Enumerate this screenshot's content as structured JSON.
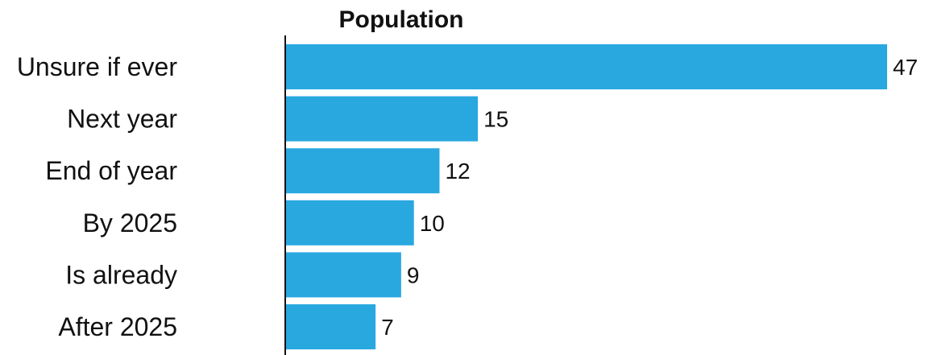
{
  "chart_data": {
    "type": "bar",
    "orientation": "horizontal",
    "title": "Population",
    "xlabel": "",
    "ylabel": "",
    "categories": [
      "Unsure if ever",
      "Next year",
      "End of year",
      "By 2025",
      "Is already",
      "After 2025"
    ],
    "values": [
      47,
      15,
      12,
      10,
      9,
      7
    ],
    "xlim": [
      0,
      47
    ],
    "grid": false,
    "legend": "none",
    "colors": {
      "bar": "#29a8e0",
      "text": "#111111",
      "axis": "#111111"
    }
  }
}
